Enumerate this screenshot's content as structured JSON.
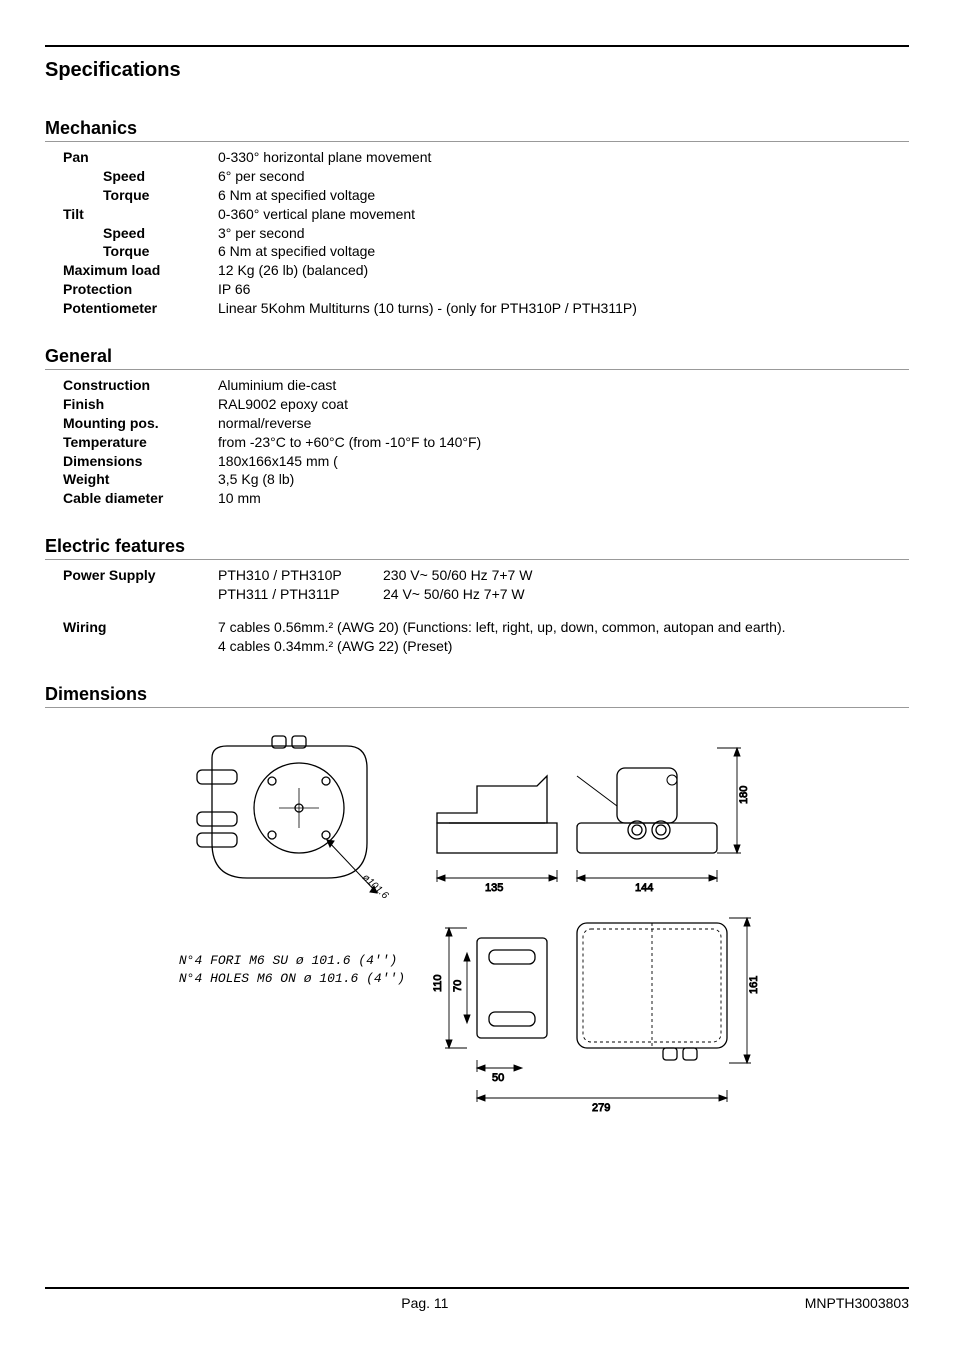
{
  "page": {
    "title": "Specifications",
    "footer_page": "Pag. 11",
    "footer_code": "MNPTH3003803"
  },
  "mechanics": {
    "heading": "Mechanics",
    "rows": [
      {
        "label": "Pan",
        "sub": false,
        "value": "0-330° horizontal plane movement"
      },
      {
        "label": "Speed",
        "sub": true,
        "value": "6° per second"
      },
      {
        "label": "Torque",
        "sub": true,
        "value": "6 Nm at specified voltage"
      },
      {
        "label": "Tilt",
        "sub": false,
        "value": "0-360° vertical plane movement"
      },
      {
        "label": "Speed",
        "sub": true,
        "value": "3° per second"
      },
      {
        "label": "Torque",
        "sub": true,
        "value": "6 Nm at specified voltage"
      },
      {
        "label": "Maximum load",
        "sub": false,
        "value": "12 Kg  (26 lb) (balanced)"
      },
      {
        "label": "Protection",
        "sub": false,
        "value": "IP 66"
      },
      {
        "label": "Potentiometer",
        "sub": false,
        "value": "Linear 5Kohm Multiturns (10 turns) - (only for PTH310P / PTH311P)"
      }
    ]
  },
  "general": {
    "heading": "General",
    "rows": [
      {
        "label": "Construction",
        "value": "Aluminium die-cast"
      },
      {
        "label": "Finish",
        "value": "RAL9002 epoxy coat"
      },
      {
        "label": "Mounting pos.",
        "value": "normal/reverse"
      },
      {
        "label": "Temperature",
        "value": "from -23°C to +60°C (from -10°F to 140°F)"
      },
      {
        "label": "Dimensions",
        "value": "180x166x145 mm ("
      },
      {
        "label": "Weight",
        "value": "3,5 Kg  (8 lb)"
      },
      {
        "label": "Cable diameter",
        "value": "10 mm"
      }
    ]
  },
  "electric": {
    "heading": "Electric features",
    "power_label": "Power Supply",
    "power_rows": [
      {
        "model": "PTH310 / PTH310P",
        "spec": "230 V~ 50/60 Hz 7+7 W"
      },
      {
        "model": "PTH311 / PTH311P",
        "spec": " 24  V~ 50/60 Hz 7+7 W"
      }
    ],
    "wiring_label": "Wiring",
    "wiring_lines": [
      "7 cables 0.56mm.² (AWG 20) (Functions: left, right, up, down, common, autopan and earth).",
      "4 cables 0.34mm.² (AWG 22) (Preset)"
    ]
  },
  "dimensions": {
    "heading": "Dimensions",
    "caption_line1": "N°4 FORI M6 SU ø 101.6 (4'')",
    "caption_line2": "N°4 HOLES M6 ON ø 101.6 (4'')",
    "dims": {
      "v180": "180",
      "h135": "135",
      "h144": "144",
      "v110": "110",
      "v70": "70",
      "v161": "161",
      "h50": "50",
      "h279": "279",
      "diag": "ø101.6"
    }
  },
  "style": {
    "stroke": "#000000",
    "stroke_thin": "#000000",
    "fill_bg": "#ffffff"
  }
}
